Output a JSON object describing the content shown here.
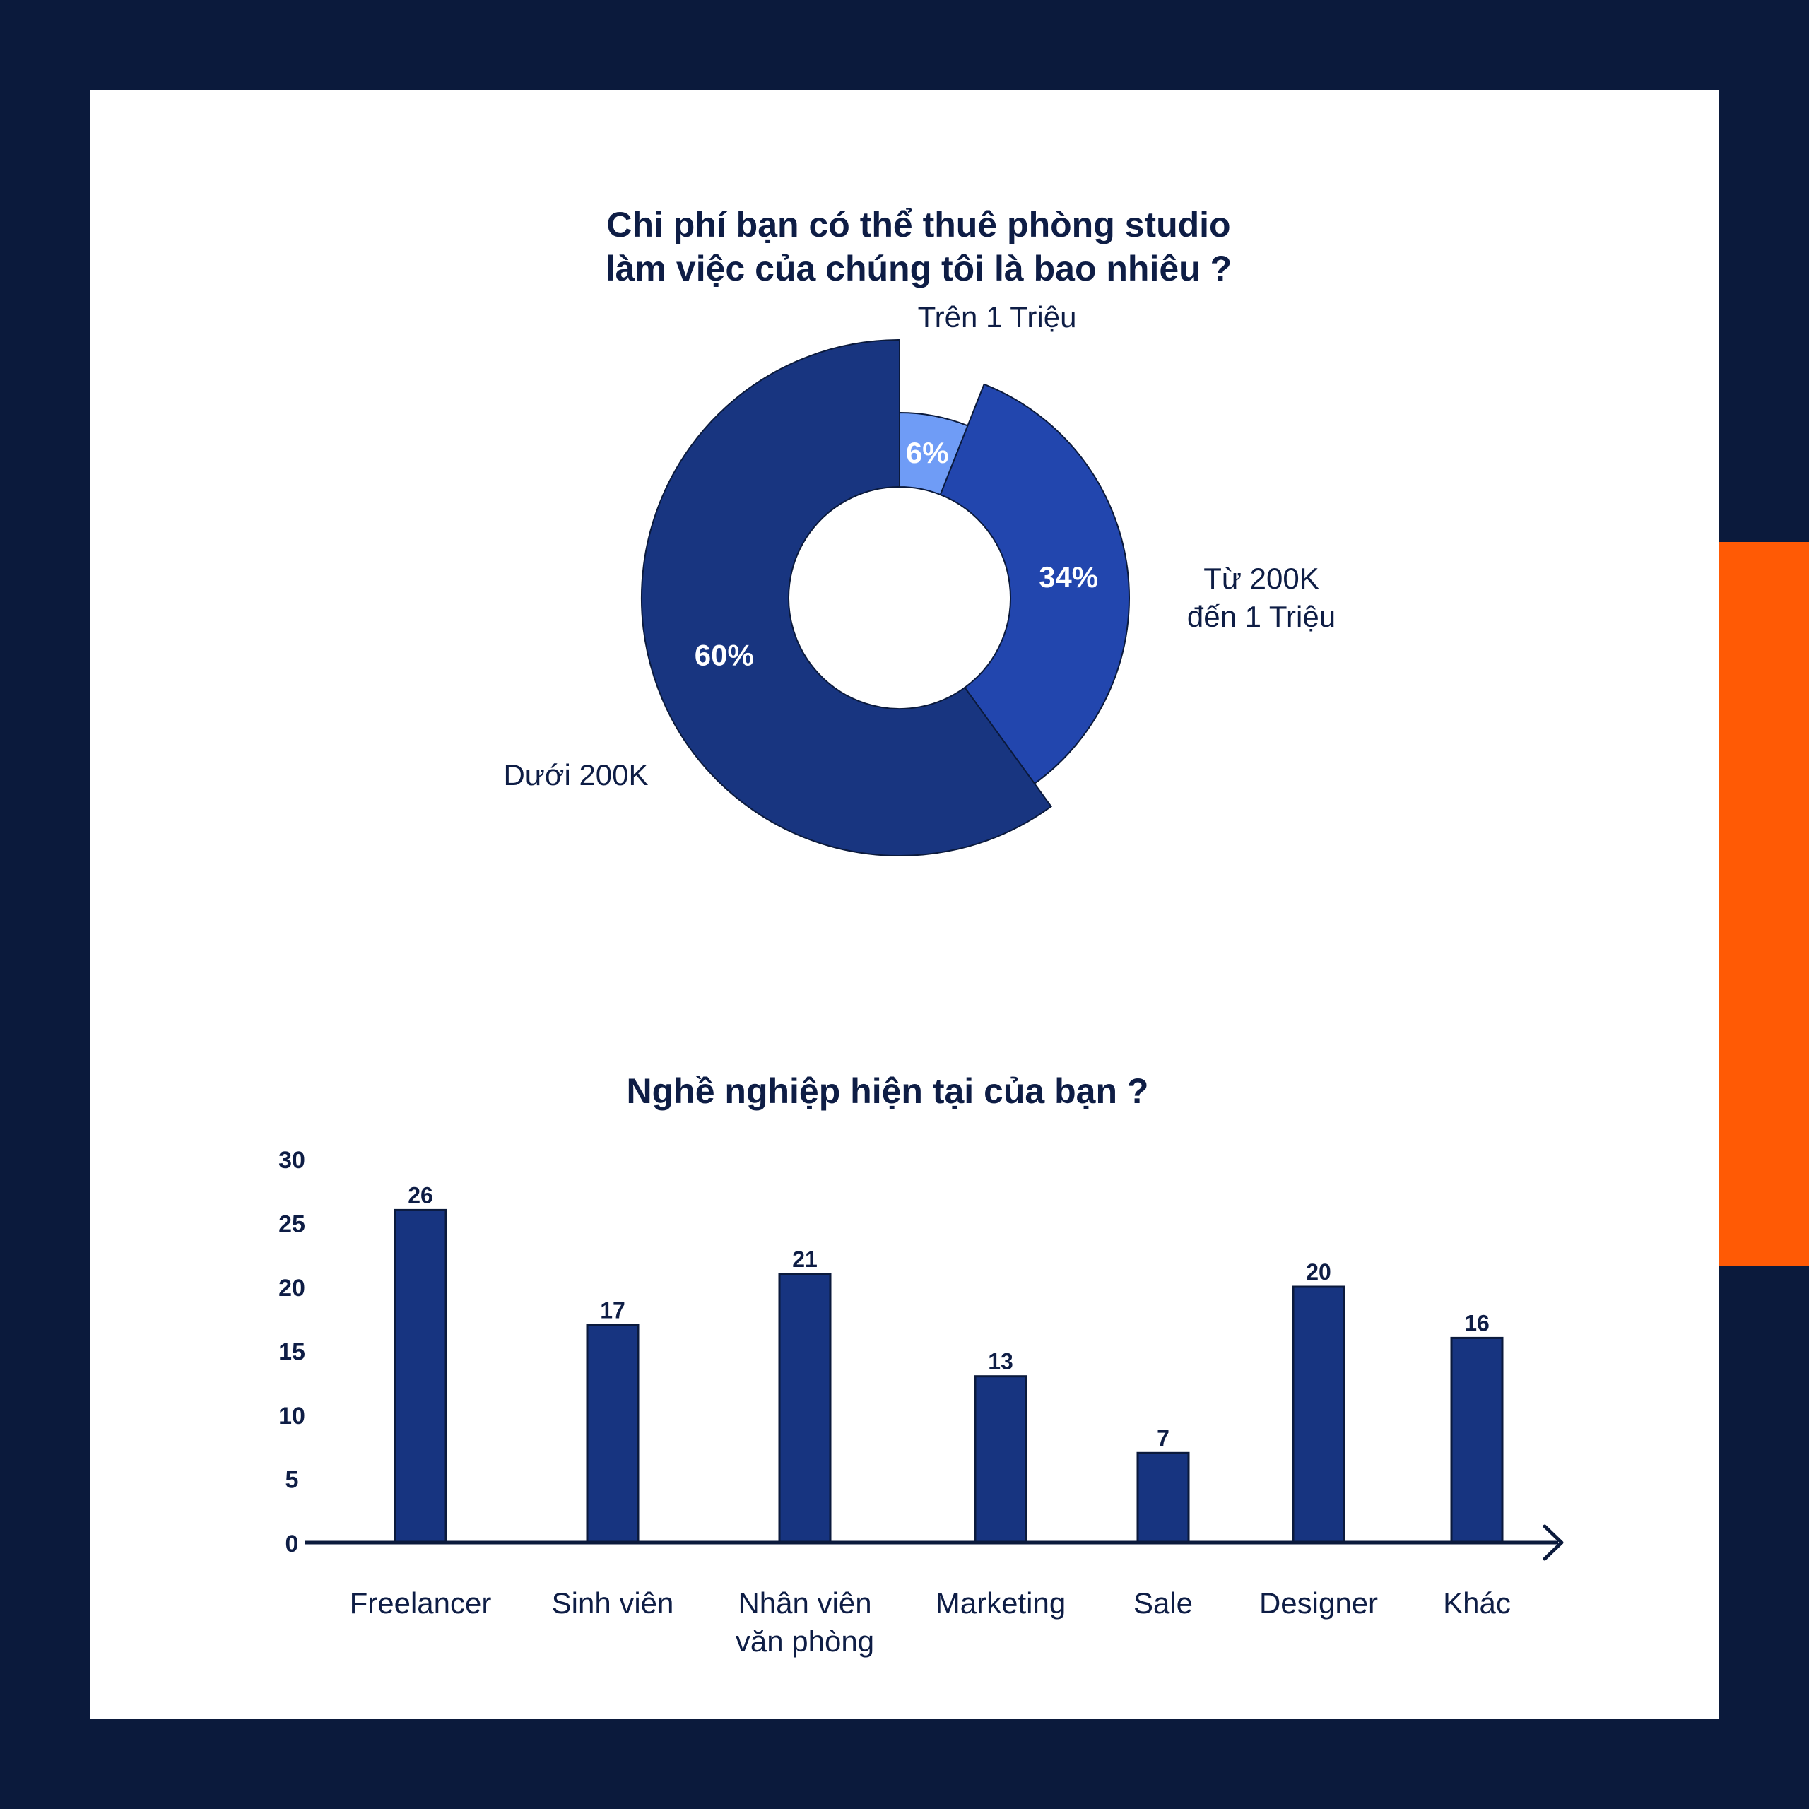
{
  "colors": {
    "frame": "#0b1a3c",
    "accent": "#ff5a05",
    "panel": "#ffffff",
    "text": "#0e1d45",
    "bar": "#173480",
    "outline": "#0b1a3c"
  },
  "chart_data": [
    {
      "type": "pie",
      "style": "donut",
      "title": "Chi phí bạn có thể thuê phòng studio\nlàm việc của chúng tôi là bao nhiêu ?",
      "slices": [
        {
          "label": "Trên 1 Triệu",
          "value": 6,
          "value_label": "6%",
          "color": "#6f9cf6",
          "radius_level": "small"
        },
        {
          "label": "Từ 200K\nđến 1 Triệu",
          "value": 34,
          "value_label": "34%",
          "color": "#2246ae",
          "radius_level": "medium"
        },
        {
          "label": "Dưới 200K",
          "value": 60,
          "value_label": "60%",
          "color": "#183580",
          "radius_level": "large"
        }
      ]
    },
    {
      "type": "bar",
      "title": "Nghề nghiệp hiện tại của bạn ?",
      "categories": [
        "Freelancer",
        "Sinh viên",
        "Nhân viên\nvăn phòng",
        "Marketing",
        "Sale",
        "Designer",
        "Khác"
      ],
      "values": [
        26,
        17,
        21,
        13,
        7,
        20,
        16
      ],
      "data_labels": [
        "26",
        "17",
        "21",
        "13",
        "7",
        "20",
        "16"
      ],
      "ylim": [
        0,
        30
      ],
      "yticks": [
        "0",
        "5",
        "10",
        "15",
        "20",
        "25",
        "30"
      ],
      "xlabel": "",
      "ylabel": "",
      "grid": false
    }
  ]
}
